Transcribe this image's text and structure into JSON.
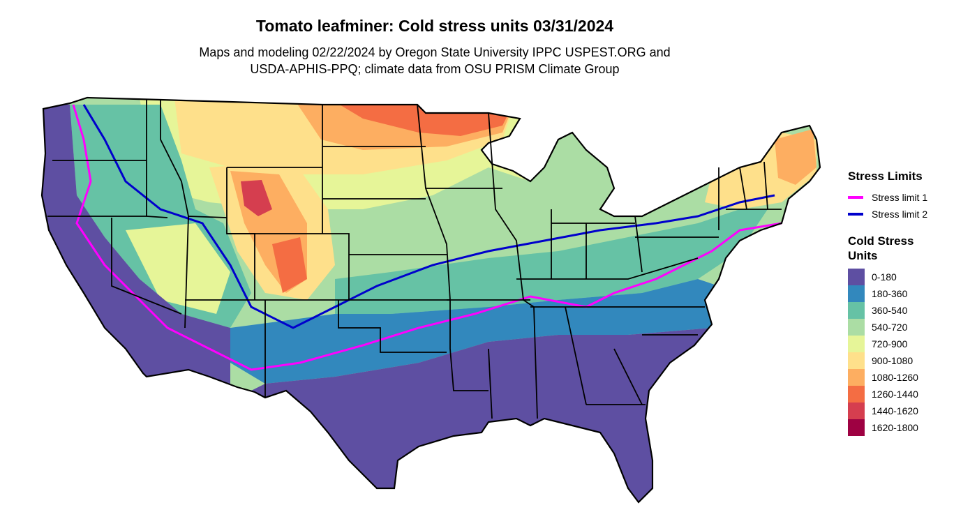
{
  "title": "Tomato leafminer: Cold stress units 03/31/2024",
  "subtitle": {
    "line1": "Maps and modeling 02/22/2024 by Oregon State University IPPC USPEST.ORG and",
    "line2": "USDA-APHIS-PPQ; climate data from OSU PRISM Climate Group"
  },
  "legend": {
    "stress_title": "Stress Limits",
    "stress_items": [
      {
        "label": "Stress limit 1",
        "color": "#ff00ff"
      },
      {
        "label": "Stress limit 2",
        "color": "#0000cc"
      }
    ],
    "units_title": "Cold Stress Units",
    "units_items": [
      {
        "label": "0-180",
        "color": "#5e4fa2"
      },
      {
        "label": "180-360",
        "color": "#3288bd"
      },
      {
        "label": "360-540",
        "color": "#66c2a5"
      },
      {
        "label": "540-720",
        "color": "#abdda4"
      },
      {
        "label": "720-900",
        "color": "#e6f598"
      },
      {
        "label": "900-1080",
        "color": "#fee08b"
      },
      {
        "label": "1080-1260",
        "color": "#fdae61"
      },
      {
        "label": "1260-1440",
        "color": "#f46d43"
      },
      {
        "label": "1440-1620",
        "color": "#d53e4f"
      },
      {
        "label": "1620-1800",
        "color": "#9e0142"
      }
    ]
  }
}
